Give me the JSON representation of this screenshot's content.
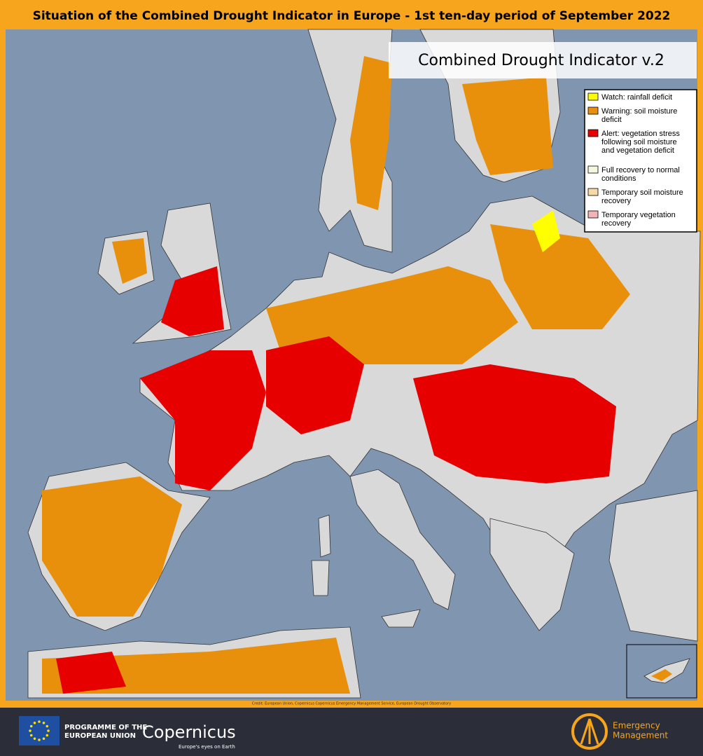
{
  "header": {
    "title": "Situation of the Combined Drought Indicator in Europe - 1st ten-day period of September 2022"
  },
  "map": {
    "title": "Combined Drought Indicator v.2",
    "credit": "Credit: European Union, Copernicus Copernicus Emergency Management Service, European Drought Observatory"
  },
  "legend": {
    "items": [
      {
        "label": "Watch: rainfall deficit",
        "color": "#ffff00"
      },
      {
        "label": "Warning: soil moisture deficit",
        "color": "#e8900c"
      },
      {
        "label": "Alert: vegetation stress following soil moisture and vegetation deficit",
        "color": "#e60000"
      },
      {
        "label": "Full recovery to normal conditions",
        "color": "#f2f8de"
      },
      {
        "label": "Temporary soil moisture recovery",
        "color": "#f5d9a6"
      },
      {
        "label": "Temporary vegetation recovery",
        "color": "#f2b4b4"
      }
    ]
  },
  "footer": {
    "eu_line1": "PROGRAMME OF THE",
    "eu_line2": "EUROPEAN UNION",
    "copernicus": "Copernicus",
    "copernicus_tagline": "Europe's eyes on Earth",
    "em_line1": "Emergency",
    "em_line2": "Management"
  }
}
